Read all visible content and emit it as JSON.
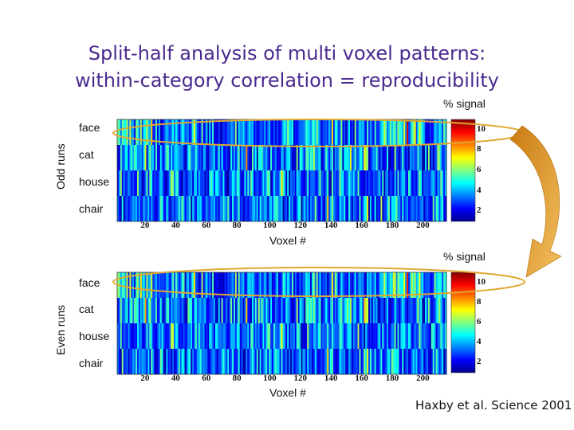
{
  "title_line1": "Split-half analysis of multi voxel patterns:",
  "title_line2": "within-category correlation = reproducibility",
  "citation": "Haxby et al. Science 2001",
  "colors": {
    "title": "#4b2a8f",
    "highlight": "#e0a830",
    "arrow": "#d8901c"
  },
  "panels": [
    {
      "run_label": "Odd runs",
      "colorbar_label": "% signal",
      "colorbar_ticks": [
        "10",
        "8",
        "6",
        "4",
        "2"
      ],
      "categories": [
        "face",
        "cat",
        "house",
        "chair"
      ],
      "x_ticks": [
        "20",
        "40",
        "60",
        "80",
        "100",
        "120",
        "140",
        "160",
        "180",
        "200"
      ],
      "xlabel": "Voxel #"
    },
    {
      "run_label": "Even runs",
      "colorbar_label": "% signal",
      "colorbar_ticks": [
        "10",
        "8",
        "6",
        "4",
        "2"
      ],
      "categories": [
        "face",
        "cat",
        "house",
        "chair"
      ],
      "x_ticks": [
        "20",
        "40",
        "60",
        "80",
        "100",
        "120",
        "140",
        "160",
        "180",
        "200"
      ],
      "xlabel": "Voxel #"
    }
  ]
}
